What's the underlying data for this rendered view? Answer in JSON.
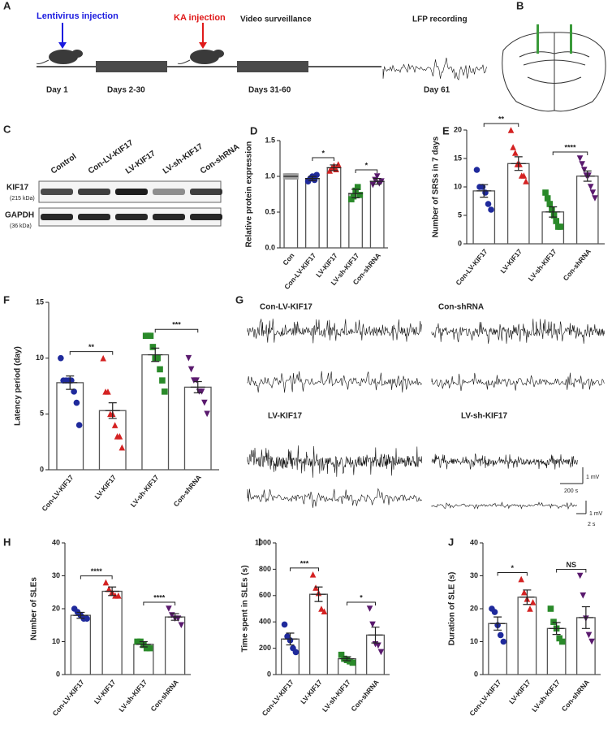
{
  "timeline": {
    "label": "A",
    "events": [
      "Lentivirus injection",
      "KA injection",
      "Video surveillance",
      "LFP recording"
    ],
    "days": [
      "Day 1",
      "Days 2-30",
      "Days 31-60",
      "Day 61"
    ]
  },
  "brain": {
    "label": "B"
  },
  "blot": {
    "label": "C",
    "lanes": [
      "Control",
      "Con-LV-KIF17",
      "LV-KIF17",
      "LV-sh-KIF17",
      "Con-shRNA"
    ],
    "rows": [
      {
        "name": "KIF17",
        "size": "(215 kDa)"
      },
      {
        "name": "GAPDH",
        "size": "(36 kDa)"
      }
    ]
  },
  "traces": {
    "label": "G",
    "titles": [
      "Con-LV-KIF17",
      "Con-shRNA",
      "LV-KIF17",
      "LV-sh-KIF17"
    ],
    "scale_bars": [
      "1 mV",
      "200 s",
      "1 mV",
      "2 s"
    ]
  },
  "chart_data": [
    {
      "type": "bar",
      "label": "D",
      "ylabel": "Relative protein expression",
      "categories": [
        "Con",
        "Con-LV-KIF17",
        "LV-KIF17",
        "LV-sh-KIF17",
        "Con-shRNA"
      ],
      "values": [
        1.0,
        0.97,
        1.12,
        0.76,
        0.93
      ],
      "errors": [
        0,
        0.03,
        0.04,
        0.06,
        0.04
      ],
      "points": [
        [
          1.0,
          1.0,
          1.0,
          1.0,
          1.0,
          1.0,
          1.0,
          1.0
        ],
        [
          0.93,
          0.97,
          1.0,
          0.95,
          1.02
        ],
        [
          1.08,
          1.12,
          1.15,
          1.1,
          1.17
        ],
        [
          0.68,
          0.72,
          0.8,
          0.85,
          0.74
        ],
        [
          0.88,
          0.95,
          1.0,
          0.9,
          0.93
        ]
      ],
      "colors": [
        "#a0a0a0",
        "#1f2a9c",
        "#d42222",
        "#2a8a2a",
        "#5a1a6e"
      ],
      "markers": [
        "square",
        "circle",
        "triangle",
        "square",
        "triangle-down"
      ],
      "ylim": [
        0,
        1.5
      ],
      "yticks": [
        {
          "value": 0,
          "label": "0.0"
        },
        0.5,
        {
          "value": 1,
          "label": "1.0"
        },
        1.5
      ],
      "annotations": [
        {
          "groups": [
            "Con-LV-KIF17",
            "LV-KIF17"
          ],
          "text": "*"
        },
        {
          "groups": [
            "LV-sh-KIF17",
            "Con-shRNA"
          ],
          "text": "*"
        }
      ]
    },
    {
      "type": "bar",
      "label": "E",
      "ylabel": "Number of SRSs in 7 days",
      "categories": [
        "Con-LV-KIF17",
        "LV-KIF17",
        "LV-sh-KIF17",
        "Con-shRNA"
      ],
      "values": [
        9.3,
        14.1,
        5.6,
        11.9
      ],
      "errors": [
        1.1,
        1.2,
        0.9,
        0.9
      ],
      "points": [
        [
          13,
          10,
          10,
          9,
          7,
          6
        ],
        [
          20,
          17,
          16,
          14,
          14,
          12,
          12,
          11
        ],
        [
          9,
          8,
          7,
          6,
          5,
          4,
          3,
          3
        ],
        [
          15,
          14,
          13,
          12,
          12,
          10,
          9,
          8
        ]
      ],
      "colors": [
        "#1f2a9c",
        "#d42222",
        "#2a8a2a",
        "#5a1a6e"
      ],
      "markers": [
        "circle",
        "triangle",
        "square",
        "triangle-down"
      ],
      "ylim": [
        0,
        20
      ],
      "yticks": [
        0,
        5,
        10,
        15,
        20
      ],
      "annotations": [
        {
          "groups": [
            "Con-LV-KIF17",
            "LV-KIF17"
          ],
          "text": "**"
        },
        {
          "groups": [
            "LV-sh-KIF17",
            "Con-shRNA"
          ],
          "text": "****"
        }
      ]
    },
    {
      "type": "bar",
      "label": "F",
      "ylabel": "Latency period (day)",
      "categories": [
        "Con-LV-KIF17",
        "LV-KIF17",
        "LV-sh-KIF17",
        "Con-shRNA"
      ],
      "values": [
        7.8,
        5.3,
        10.3,
        7.4
      ],
      "errors": [
        0.6,
        0.7,
        0.6,
        0.5
      ],
      "points": [
        [
          10,
          8,
          8,
          8,
          8,
          7,
          6,
          4
        ],
        [
          10,
          7,
          7,
          5,
          5,
          4,
          3,
          3,
          2
        ],
        [
          12,
          12,
          12,
          11,
          10,
          10,
          9,
          8,
          7
        ],
        [
          10,
          9,
          8,
          8,
          7,
          7,
          6,
          5
        ]
      ],
      "colors": [
        "#1f2a9c",
        "#d42222",
        "#2a8a2a",
        "#5a1a6e"
      ],
      "markers": [
        "circle",
        "triangle",
        "square",
        "triangle-down"
      ],
      "ylim": [
        0,
        15
      ],
      "yticks": [
        0,
        5,
        10,
        15
      ],
      "annotations": [
        {
          "groups": [
            "Con-LV-KIF17",
            "LV-KIF17"
          ],
          "text": "**"
        },
        {
          "groups": [
            "LV-sh-KIF17",
            "Con-shRNA"
          ],
          "text": "***"
        }
      ]
    },
    {
      "type": "bar",
      "label": "H",
      "ylabel": "Number of SLEs",
      "categories": [
        "Con-LV-KIF17",
        "LV-KIF17",
        "LV-sh-KIF17",
        "Con-shRNA"
      ],
      "values": [
        18,
        25.3,
        9.2,
        17.5
      ],
      "errors": [
        0.9,
        1.3,
        0.8,
        1.0
      ],
      "points": [
        [
          20,
          19,
          18,
          17,
          17
        ],
        [
          28,
          26,
          25,
          24,
          24
        ],
        [
          10,
          10,
          9,
          8,
          8
        ],
        [
          20,
          18,
          17,
          17,
          15
        ]
      ],
      "colors": [
        "#1f2a9c",
        "#d42222",
        "#2a8a2a",
        "#5a1a6e"
      ],
      "markers": [
        "circle",
        "triangle",
        "square",
        "triangle-down"
      ],
      "ylim": [
        0,
        40
      ],
      "yticks": [
        0,
        10,
        20,
        30,
        40
      ],
      "annotations": [
        {
          "groups": [
            "Con-LV-KIF17",
            "LV-KIF17"
          ],
          "text": "****"
        },
        {
          "groups": [
            "LV-sh-KIF17",
            "Con-shRNA"
          ],
          "text": "****"
        }
      ]
    },
    {
      "type": "bar",
      "label": "I",
      "ylabel": "Time spent in SLEs  (s)",
      "categories": [
        "Con-LV-KIF17",
        "LV-KIF17",
        "LV-sh-KIF17",
        "Con-shRNA"
      ],
      "values": [
        270,
        610,
        120,
        300
      ],
      "errors": [
        45,
        55,
        15,
        60
      ],
      "points": [
        [
          380,
          290,
          260,
          200,
          170
        ],
        [
          760,
          660,
          620,
          500,
          480
        ],
        [
          150,
          120,
          110,
          100,
          90
        ],
        [
          500,
          380,
          230,
          220,
          170
        ]
      ],
      "colors": [
        "#1f2a9c",
        "#d42222",
        "#2a8a2a",
        "#5a1a6e"
      ],
      "markers": [
        "circle",
        "triangle",
        "square",
        "triangle-down"
      ],
      "ylim": [
        0,
        1000
      ],
      "yticks": [
        0,
        200,
        400,
        600,
        800,
        1000
      ],
      "annotations": [
        {
          "groups": [
            "Con-LV-KIF17",
            "LV-KIF17"
          ],
          "text": "***"
        },
        {
          "groups": [
            "LV-sh-KIF17",
            "Con-shRNA"
          ],
          "text": "*"
        }
      ]
    },
    {
      "type": "bar",
      "label": "J",
      "ylabel": "Duration of SLE (s)",
      "categories": [
        "Con-LV-KIF17",
        "LV-KIF17",
        "LV-sh-KIF17",
        "Con-shRNA"
      ],
      "values": [
        15.5,
        23.5,
        14,
        17.3
      ],
      "errors": [
        2,
        2.2,
        1.8,
        3.3
      ],
      "points": [
        [
          20,
          19,
          15,
          12,
          10
        ],
        [
          29,
          25,
          23,
          20,
          22
        ],
        [
          20,
          16,
          14,
          11,
          10
        ],
        [
          30,
          24,
          17,
          12,
          10
        ]
      ],
      "colors": [
        "#1f2a9c",
        "#d42222",
        "#2a8a2a",
        "#5a1a6e"
      ],
      "markers": [
        "circle",
        "triangle",
        "square",
        "triangle-down"
      ],
      "ylim": [
        0,
        40
      ],
      "yticks": [
        0,
        10,
        20,
        30,
        40
      ],
      "annotations": [
        {
          "groups": [
            "Con-LV-KIF17",
            "LV-KIF17"
          ],
          "text": "*"
        },
        {
          "groups": [
            "LV-sh-KIF17",
            "Con-shRNA"
          ],
          "text": "NS"
        }
      ]
    }
  ]
}
